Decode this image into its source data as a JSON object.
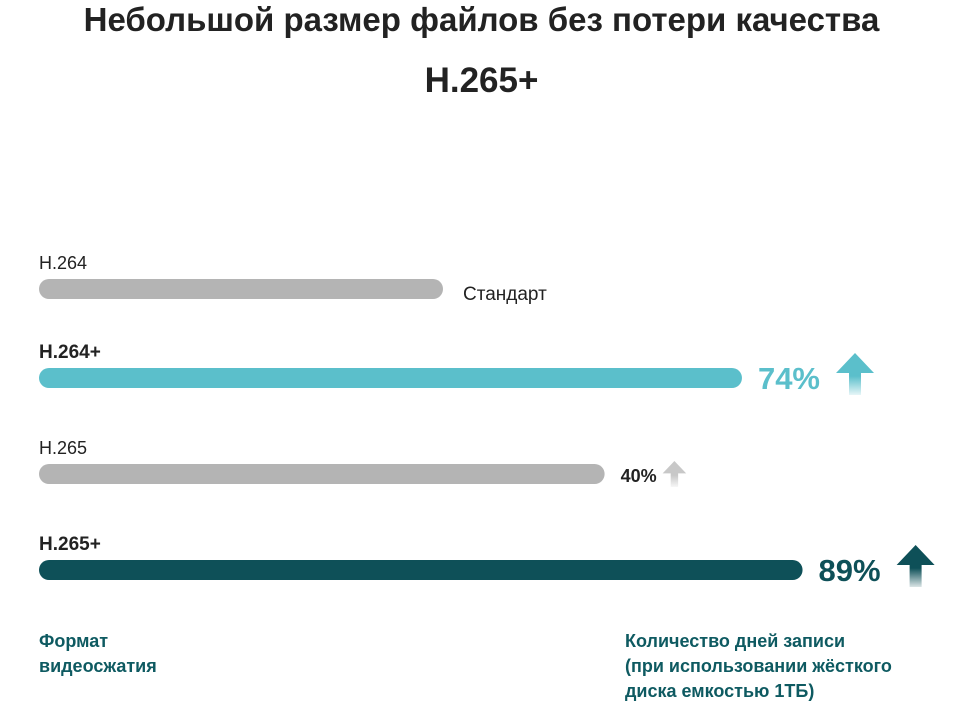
{
  "header": {
    "title": "Небольшой размер файлов без потери качества",
    "subtitle": "H.265+"
  },
  "footer": {
    "left_lines": [
      "Формат",
      "видеосжатия"
    ],
    "right_lines": [
      "Количество дней записи",
      "(при использовании жёсткого",
      "диска емкостью 1ТБ)"
    ]
  },
  "colors": {
    "teal": "#5bbfcb",
    "dark_teal": "#0e5058",
    "gray": "#b4b4b4",
    "light_gray": "#c8c8c8",
    "text": "#222222"
  },
  "chart_data": {
    "type": "bar",
    "orientation": "horizontal",
    "categories": [
      "H.264",
      "H.264+",
      "H.265",
      "H.265+"
    ],
    "values": [
      0,
      74,
      40,
      89
    ],
    "labels": [
      "Стандарт",
      "74%",
      "40%",
      "89%"
    ],
    "units": "%",
    "xlim": [
      -100,
      100
    ],
    "category_styles": [
      {
        "bold": false,
        "color": "gray",
        "label_color": "text",
        "label_bold": false,
        "arrow": false
      },
      {
        "bold": true,
        "color": "teal",
        "label_color": "teal",
        "label_bold": true,
        "arrow": true,
        "arrow_color": "teal"
      },
      {
        "bold": false,
        "color": "gray",
        "label_color": "text",
        "label_bold": true,
        "arrow": true,
        "arrow_color": "light_gray"
      },
      {
        "bold": true,
        "color": "dark_teal",
        "label_color": "dark_teal",
        "label_bold": true,
        "arrow": true,
        "arrow_color": "dark_teal"
      }
    ]
  }
}
